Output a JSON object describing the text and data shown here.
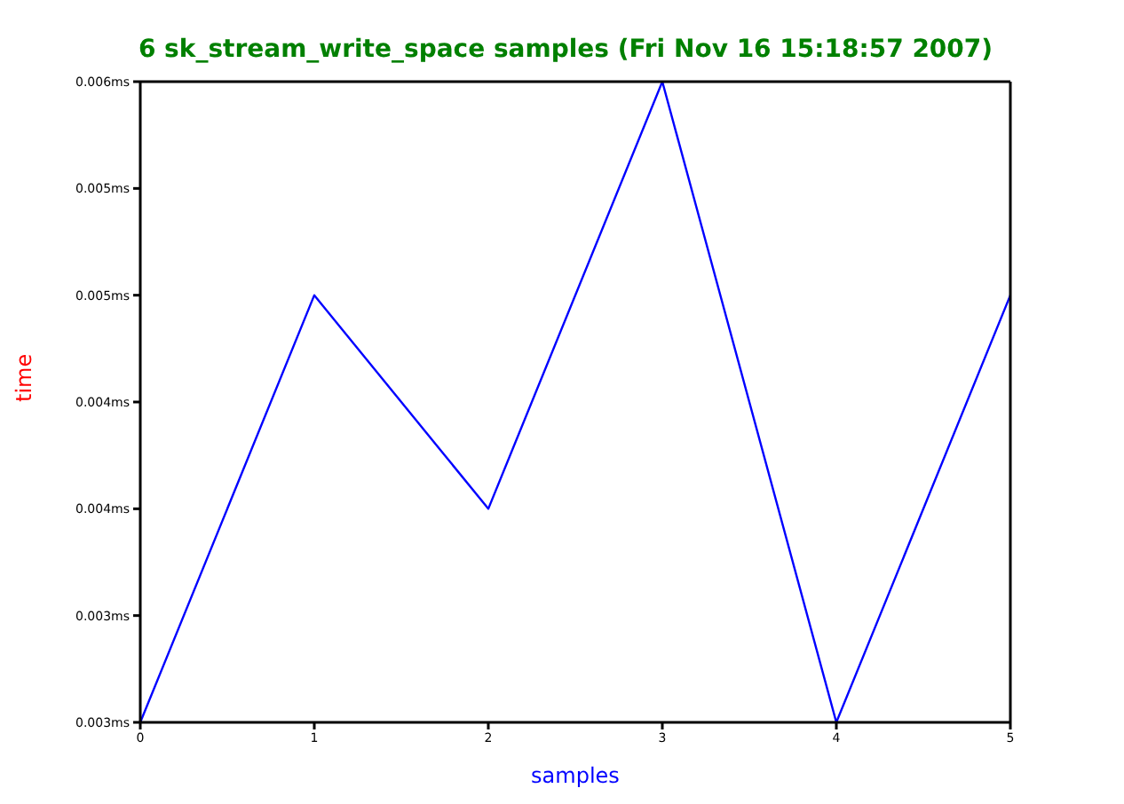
{
  "chart_data": {
    "type": "line",
    "title": "6 sk_stream_write_space samples (Fri Nov 16 15:18:57 2007)",
    "xlabel": "samples",
    "ylabel": "time",
    "x": [
      0,
      1,
      2,
      3,
      4,
      5
    ],
    "series": [
      {
        "color": "#0000ff",
        "values": [
          0.003,
          0.005,
          0.004,
          0.006,
          0.003,
          0.005
        ]
      }
    ],
    "xlim": [
      0,
      5
    ],
    "xticks": [
      0,
      1,
      2,
      3,
      4,
      5
    ],
    "ylim": [
      0.003,
      0.006
    ],
    "yticks": [
      {
        "value": 0.003,
        "label": "0.003ms"
      },
      {
        "value": 0.0035,
        "label": "0.003ms"
      },
      {
        "value": 0.004,
        "label": "0.004ms"
      },
      {
        "value": 0.0045,
        "label": "0.004ms"
      },
      {
        "value": 0.005,
        "label": "0.005ms"
      },
      {
        "value": 0.0055,
        "label": "0.005ms"
      },
      {
        "value": 0.006,
        "label": "0.006ms"
      }
    ],
    "grid": false,
    "legend": false,
    "marker": "none",
    "line_style": "solid"
  }
}
